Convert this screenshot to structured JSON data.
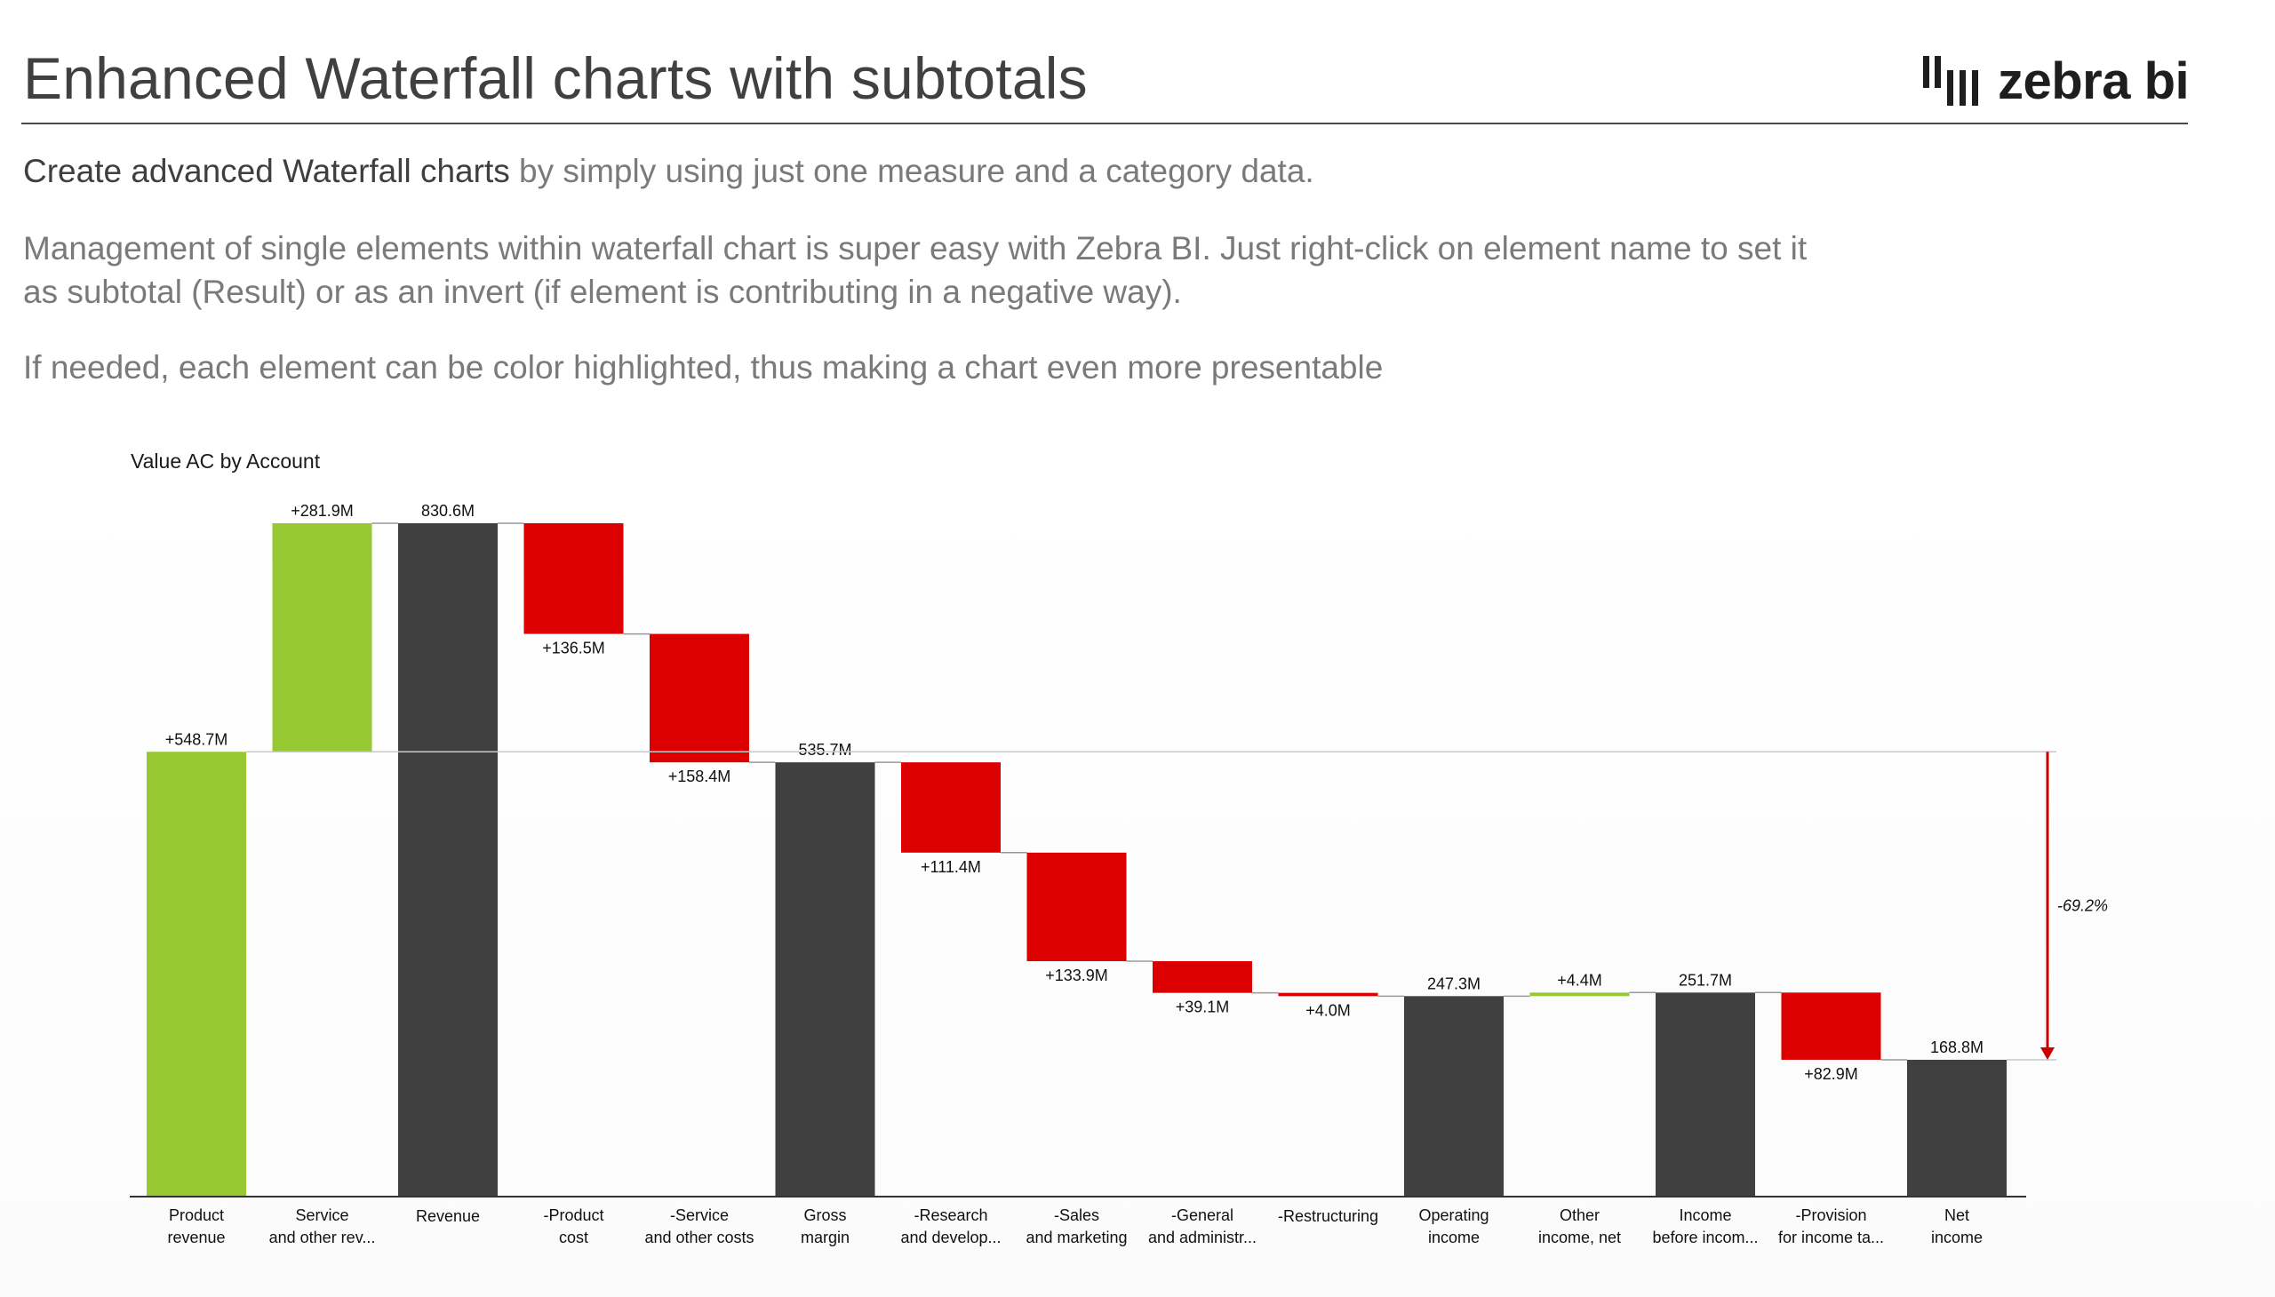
{
  "header": {
    "title": "Enhanced Waterfall charts with subtotals",
    "logo_text": "zebra bi"
  },
  "intro": {
    "p1_strong": "Create advanced Waterfall charts",
    "p1_rest": " by simply using just one measure and a category data.",
    "p2_line1": "Management of single elements within waterfall chart is super easy with Zebra BI. Just right-click on element name to set it",
    "p2_line2": "as subtotal (Result) or as an invert (if element is contributing in a negative way).",
    "p3": "If needed, each element can be color highlighted, thus making a chart even more presentable"
  },
  "colors": {
    "positive": "#96c832",
    "negative": "#dd0000",
    "result": "#404040",
    "connector": "#9a9a9a",
    "axis": "#333333",
    "variance_arrow": "#cc0000"
  },
  "chart_data": {
    "type": "waterfall",
    "title": "Value AC by Account",
    "unit": "M",
    "ylim": [
      0,
      830.6
    ],
    "steps": [
      {
        "label": [
          "Product",
          "revenue"
        ],
        "value": 548.7,
        "kind": "positive",
        "data_label": "+548.7M"
      },
      {
        "label": [
          "Service",
          "and other rev..."
        ],
        "value": 281.9,
        "kind": "positive",
        "data_label": "+281.9M"
      },
      {
        "label": [
          "Revenue"
        ],
        "value": 830.6,
        "kind": "result",
        "data_label": "830.6M"
      },
      {
        "label": [
          "-Product",
          "cost"
        ],
        "value": -136.5,
        "kind": "negative",
        "data_label": "+136.5M"
      },
      {
        "label": [
          "-Service",
          "and other costs"
        ],
        "value": -158.4,
        "kind": "negative",
        "data_label": "+158.4M"
      },
      {
        "label": [
          "Gross",
          "margin"
        ],
        "value": 535.7,
        "kind": "result",
        "data_label": "535.7M"
      },
      {
        "label": [
          "-Research",
          "and develop..."
        ],
        "value": -111.4,
        "kind": "negative",
        "data_label": "+111.4M"
      },
      {
        "label": [
          "-Sales",
          "and marketing"
        ],
        "value": -133.9,
        "kind": "negative",
        "data_label": "+133.9M"
      },
      {
        "label": [
          "-General",
          "and administr..."
        ],
        "value": -39.1,
        "kind": "negative",
        "data_label": "+39.1M"
      },
      {
        "label": [
          "-Restructuring"
        ],
        "value": -4.0,
        "kind": "negative",
        "data_label": "+4.0M"
      },
      {
        "label": [
          "Operating",
          "income"
        ],
        "value": 247.3,
        "kind": "result",
        "data_label": "247.3M"
      },
      {
        "label": [
          "Other",
          "income, net"
        ],
        "value": 4.4,
        "kind": "positive",
        "data_label": "+4.4M"
      },
      {
        "label": [
          "Income",
          "before incom..."
        ],
        "value": 251.7,
        "kind": "result",
        "data_label": "251.7M"
      },
      {
        "label": [
          "-Provision",
          "for income ta..."
        ],
        "value": -82.9,
        "kind": "negative",
        "data_label": "+82.9M"
      },
      {
        "label": [
          "Net",
          "income"
        ],
        "value": 168.8,
        "kind": "result",
        "data_label": "168.8M"
      }
    ],
    "variance": {
      "from_value": 548.7,
      "to_value": 168.8,
      "label": "-69.2%"
    }
  }
}
